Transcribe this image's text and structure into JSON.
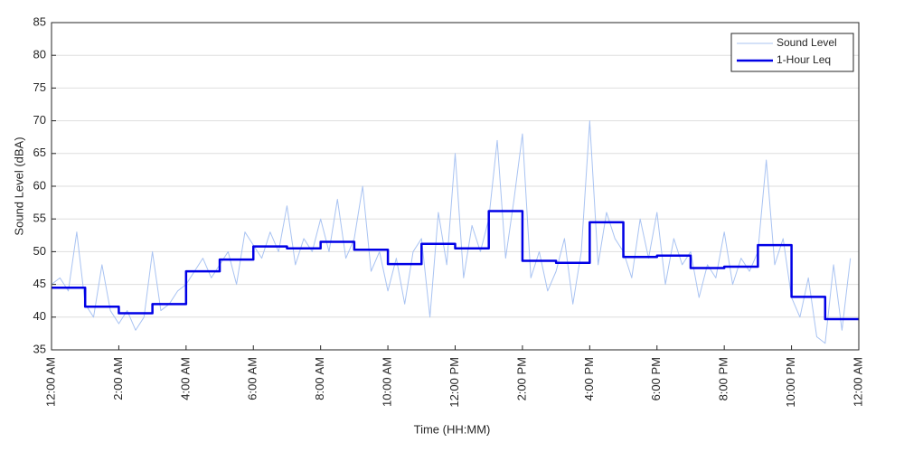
{
  "chart_data": {
    "type": "line",
    "xlabel": "Time (HH:MM)",
    "ylabel": "Sound Level (dBA)",
    "xlim": [
      0,
      24
    ],
    "ylim": [
      35,
      85
    ],
    "xticks": [
      {
        "value": 0,
        "label": "12:00 AM"
      },
      {
        "value": 2,
        "label": "2:00 AM"
      },
      {
        "value": 4,
        "label": "4:00 AM"
      },
      {
        "value": 6,
        "label": "6:00 AM"
      },
      {
        "value": 8,
        "label": "8:00 AM"
      },
      {
        "value": 10,
        "label": "10:00 AM"
      },
      {
        "value": 12,
        "label": "12:00 PM"
      },
      {
        "value": 14,
        "label": "2:00 PM"
      },
      {
        "value": 16,
        "label": "4:00 PM"
      },
      {
        "value": 18,
        "label": "6:00 PM"
      },
      {
        "value": 20,
        "label": "8:00 PM"
      },
      {
        "value": 22,
        "label": "10:00 PM"
      },
      {
        "value": 24,
        "label": "12:00 AM"
      }
    ],
    "yticks": [
      35,
      40,
      45,
      50,
      55,
      60,
      65,
      70,
      75,
      80,
      85
    ],
    "grid": true,
    "legend": "upper right",
    "series": [
      {
        "name": "Sound Level",
        "color": "#a9c3f2",
        "style": "line",
        "x": [
          0,
          0.25,
          0.5,
          0.75,
          1,
          1.25,
          1.5,
          1.75,
          2,
          2.25,
          2.5,
          2.75,
          3,
          3.25,
          3.5,
          3.75,
          4,
          4.25,
          4.5,
          4.75,
          5,
          5.25,
          5.5,
          5.75,
          6,
          6.25,
          6.5,
          6.75,
          7,
          7.25,
          7.5,
          7.75,
          8,
          8.25,
          8.5,
          8.75,
          9,
          9.25,
          9.5,
          9.75,
          10,
          10.25,
          10.5,
          10.75,
          11,
          11.25,
          11.5,
          11.75,
          12,
          12.25,
          12.5,
          12.75,
          13,
          13.25,
          13.5,
          13.75,
          14,
          14.25,
          14.5,
          14.75,
          15,
          15.25,
          15.5,
          15.75,
          16,
          16.25,
          16.5,
          16.75,
          17,
          17.25,
          17.5,
          17.75,
          18,
          18.25,
          18.5,
          18.75,
          19,
          19.25,
          19.5,
          19.75,
          20,
          20.25,
          20.5,
          20.75,
          21,
          21.25,
          21.5,
          21.75,
          22,
          22.25,
          22.5,
          22.75,
          23,
          23.25,
          23.5,
          23.75
        ],
        "values": [
          45,
          46,
          44,
          53,
          42,
          40,
          48,
          41,
          39,
          41,
          38,
          40,
          50,
          41,
          42,
          44,
          45,
          47,
          49,
          46,
          48,
          50,
          45,
          53,
          51,
          49,
          53,
          50,
          57,
          48,
          52,
          50,
          55,
          50,
          58,
          49,
          52,
          60,
          47,
          50,
          44,
          49,
          42,
          50,
          52,
          40,
          56,
          48,
          65,
          46,
          54,
          50,
          55,
          67,
          49,
          58,
          68,
          46,
          50,
          44,
          47,
          52,
          42,
          50,
          70,
          48,
          56,
          52,
          50,
          46,
          55,
          49,
          56,
          45,
          52,
          48,
          50,
          43,
          48,
          46,
          53,
          45,
          49,
          47,
          50,
          64,
          48,
          52,
          43,
          40,
          46,
          37,
          36,
          48,
          38,
          49
        ]
      },
      {
        "name": "1-Hour Leq",
        "color": "#0000e6",
        "style": "steps",
        "x": [
          0,
          1,
          2,
          3,
          4,
          5,
          6,
          7,
          8,
          9,
          10,
          11,
          12,
          13,
          14,
          15,
          16,
          17,
          18,
          19,
          20,
          21,
          22,
          23
        ],
        "values": [
          44.5,
          41.6,
          40.6,
          42.0,
          47.0,
          48.8,
          50.8,
          50.5,
          51.5,
          50.3,
          48.1,
          51.2,
          50.5,
          56.2,
          48.6,
          48.3,
          54.5,
          49.2,
          49.4,
          47.5,
          47.7,
          51.0,
          43.1,
          39.7
        ]
      }
    ]
  }
}
